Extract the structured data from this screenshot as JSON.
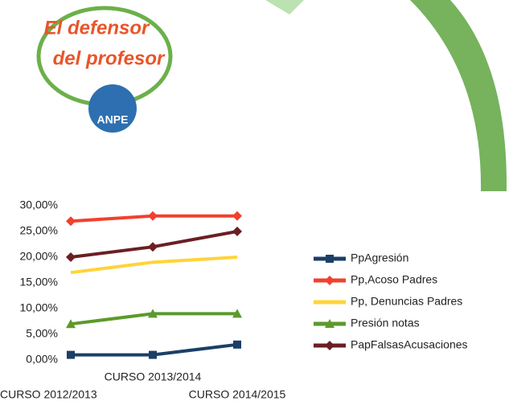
{
  "logo": {
    "line1": "El defensor",
    "line2": "del profesor",
    "badge": "ANPE"
  },
  "chart_data": {
    "type": "line",
    "categories": [
      "CURSO 2012/2013",
      "CURSO 2013/2014",
      "CURSO 2014/2015"
    ],
    "series": [
      {
        "name": "PpAgresión",
        "color": "#1b3f66",
        "marker": "square",
        "values": [
          1,
          1,
          3
        ]
      },
      {
        "name": "Pp,Acoso  Padres",
        "color": "#f2402e",
        "marker": "diamond",
        "values": [
          27,
          28,
          28
        ]
      },
      {
        "name": "Pp,  Denuncias Padres",
        "color": "#ffd43a",
        "marker": "none",
        "values": [
          17,
          19,
          20
        ]
      },
      {
        "name": "Presión notas",
        "color": "#5b9a2c",
        "marker": "triangle",
        "values": [
          7,
          9,
          9
        ]
      },
      {
        "name": "PapFalsasAcusaciones",
        "color": "#6a1f24",
        "marker": "diamond",
        "values": [
          20,
          22,
          25
        ]
      }
    ],
    "ylim": [
      0,
      30
    ],
    "yticks": [
      {
        "value": 0,
        "label": "0,00%"
      },
      {
        "value": 5,
        "label": "5,00%"
      },
      {
        "value": 10,
        "label": "10,00%"
      },
      {
        "value": 15,
        "label": "15,00%"
      },
      {
        "value": 20,
        "label": "20,00%"
      },
      {
        "value": 25,
        "label": "25,00%"
      },
      {
        "value": 30,
        "label": "30,00%"
      }
    ],
    "legend": "right"
  }
}
